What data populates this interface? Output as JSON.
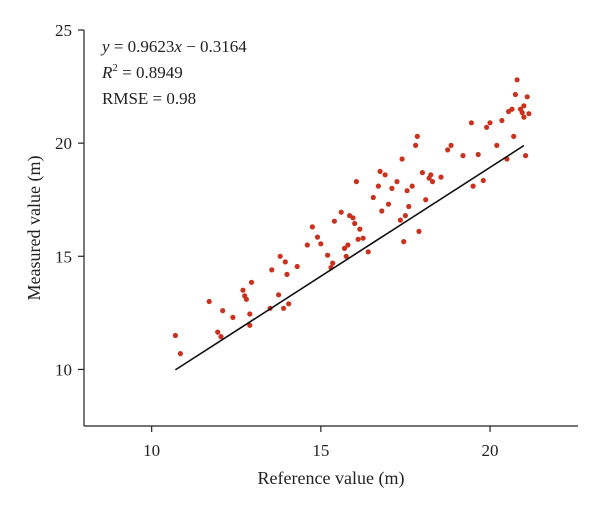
{
  "chart_data": {
    "type": "scatter",
    "xlabel": "Reference value (m)",
    "ylabel": "Measured value (m)",
    "xlim": [
      8,
      22.6
    ],
    "ylim": [
      7.5,
      25
    ],
    "x_ticks": [
      "10",
      "15",
      "20"
    ],
    "y_ticks": [
      "10",
      "15",
      "20",
      "25"
    ],
    "grid": false,
    "colors": {
      "points": "#c8321e",
      "fit_line": "#111111",
      "axis": "#222222"
    },
    "annotation": {
      "equation": {
        "y": "y",
        "mid": " = 0.9623",
        "x": "x",
        "tail": " − 0.3164"
      },
      "r2": {
        "R": "R",
        "exp": "2",
        "tail": " = 0.8949"
      },
      "rmse": "RMSE = 0.98"
    },
    "fit_line": {
      "slope": 0.9623,
      "intercept": -0.3164,
      "x_start": 10.7,
      "x_end": 21.0
    },
    "points": [
      [
        10.7,
        11.5
      ],
      [
        10.85,
        10.7
      ],
      [
        11.7,
        13.0
      ],
      [
        11.95,
        11.65
      ],
      [
        12.05,
        11.45
      ],
      [
        12.1,
        12.6
      ],
      [
        12.4,
        12.3
      ],
      [
        12.7,
        13.5
      ],
      [
        12.75,
        13.25
      ],
      [
        12.8,
        13.1
      ],
      [
        12.9,
        12.45
      ],
      [
        12.9,
        11.95
      ],
      [
        12.95,
        13.85
      ],
      [
        13.5,
        12.7
      ],
      [
        13.55,
        14.4
      ],
      [
        13.75,
        13.3
      ],
      [
        13.8,
        15.0
      ],
      [
        13.9,
        12.7
      ],
      [
        13.95,
        14.75
      ],
      [
        14.0,
        14.2
      ],
      [
        14.05,
        12.9
      ],
      [
        14.3,
        14.55
      ],
      [
        14.6,
        15.5
      ],
      [
        14.75,
        16.3
      ],
      [
        14.9,
        15.85
      ],
      [
        15.0,
        15.55
      ],
      [
        15.2,
        15.05
      ],
      [
        15.3,
        14.5
      ],
      [
        15.35,
        14.7
      ],
      [
        15.4,
        16.55
      ],
      [
        15.6,
        16.95
      ],
      [
        15.7,
        15.35
      ],
      [
        15.75,
        15.0
      ],
      [
        15.8,
        15.5
      ],
      [
        15.85,
        16.8
      ],
      [
        15.95,
        16.7
      ],
      [
        16.0,
        16.45
      ],
      [
        16.05,
        18.3
      ],
      [
        16.1,
        15.75
      ],
      [
        16.15,
        16.2
      ],
      [
        16.25,
        15.8
      ],
      [
        16.4,
        15.2
      ],
      [
        16.55,
        17.6
      ],
      [
        16.7,
        18.1
      ],
      [
        16.75,
        18.75
      ],
      [
        16.8,
        17.0
      ],
      [
        16.9,
        18.6
      ],
      [
        17.0,
        17.3
      ],
      [
        17.1,
        18.0
      ],
      [
        17.25,
        18.3
      ],
      [
        17.35,
        16.6
      ],
      [
        17.4,
        19.3
      ],
      [
        17.45,
        15.65
      ],
      [
        17.5,
        16.8
      ],
      [
        17.55,
        17.9
      ],
      [
        17.6,
        17.2
      ],
      [
        17.7,
        18.1
      ],
      [
        17.8,
        19.9
      ],
      [
        17.85,
        20.3
      ],
      [
        17.9,
        16.1
      ],
      [
        18.0,
        18.7
      ],
      [
        18.1,
        17.5
      ],
      [
        18.2,
        18.45
      ],
      [
        18.25,
        18.6
      ],
      [
        18.3,
        18.3
      ],
      [
        18.55,
        18.5
      ],
      [
        18.75,
        19.7
      ],
      [
        18.85,
        19.9
      ],
      [
        19.2,
        19.45
      ],
      [
        19.45,
        20.9
      ],
      [
        19.5,
        18.1
      ],
      [
        19.65,
        19.5
      ],
      [
        19.8,
        18.35
      ],
      [
        19.9,
        20.7
      ],
      [
        20.0,
        20.9
      ],
      [
        20.2,
        19.9
      ],
      [
        20.35,
        21.0
      ],
      [
        20.5,
        19.3
      ],
      [
        20.55,
        21.4
      ],
      [
        20.65,
        21.5
      ],
      [
        20.7,
        20.3
      ],
      [
        20.75,
        22.15
      ],
      [
        20.8,
        22.8
      ],
      [
        20.9,
        21.5
      ],
      [
        20.95,
        21.35
      ],
      [
        21.0,
        21.65
      ],
      [
        21.0,
        21.15
      ],
      [
        21.05,
        19.45
      ],
      [
        21.1,
        22.05
      ],
      [
        21.15,
        21.3
      ]
    ]
  }
}
